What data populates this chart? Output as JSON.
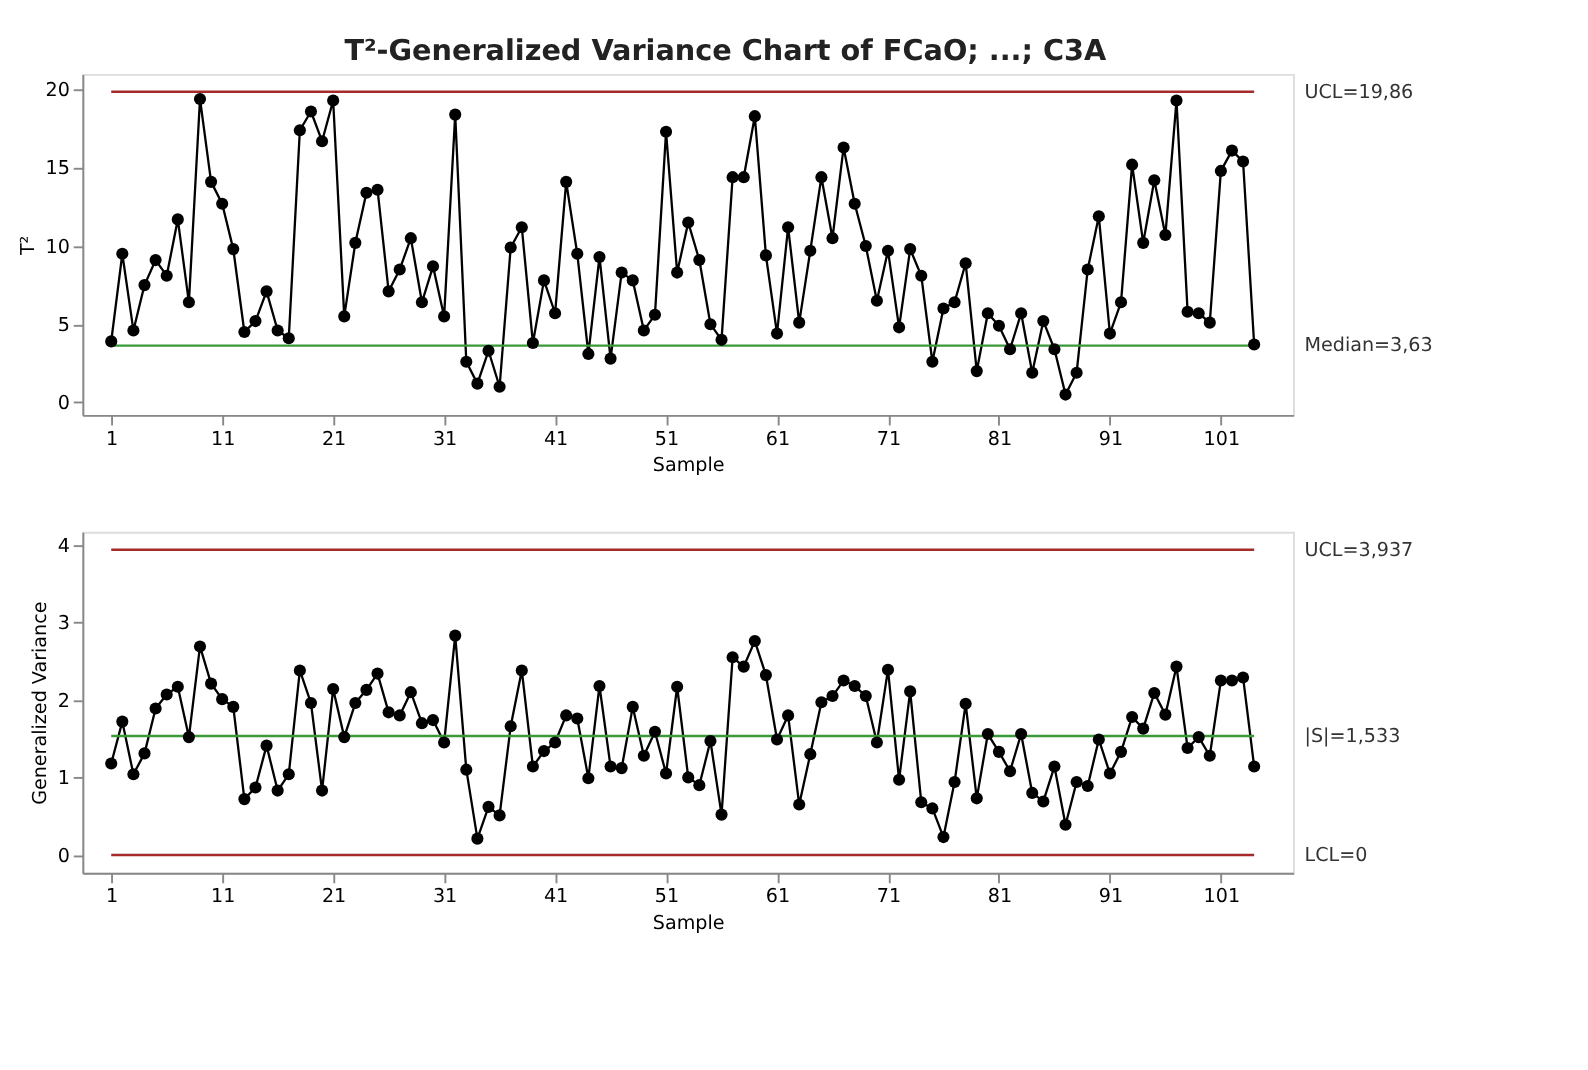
{
  "chart_data": [
    {
      "type": "line",
      "title": "T²-Generalized Variance Chart of FCaO; ...; C3A",
      "xlabel": "Sample",
      "ylabel": "T²",
      "x": [
        1,
        2,
        3,
        4,
        5,
        6,
        7,
        8,
        9,
        10,
        11,
        12,
        13,
        14,
        15,
        16,
        17,
        18,
        19,
        20,
        21,
        22,
        23,
        24,
        25,
        26,
        27,
        28,
        29,
        30,
        31,
        32,
        33,
        34,
        35,
        36,
        37,
        38,
        39,
        40,
        41,
        42,
        43,
        44,
        45,
        46,
        47,
        48,
        49,
        50,
        51,
        52,
        53,
        54,
        55,
        56,
        57,
        58,
        59,
        60,
        61,
        62,
        63,
        64,
        65,
        66,
        67,
        68,
        69,
        70,
        71,
        72,
        73,
        74,
        75,
        76,
        77,
        78,
        79,
        80,
        81,
        82,
        83,
        84,
        85,
        86,
        87,
        88,
        89,
        90,
        91,
        92,
        93,
        94,
        95,
        96,
        97,
        98,
        99,
        100,
        101,
        102,
        103,
        104
      ],
      "series": [
        {
          "color": "#000000",
          "values": [
            3.9,
            9.5,
            4.6,
            7.5,
            9.1,
            8.1,
            11.7,
            6.4,
            19.4,
            14.1,
            12.7,
            9.8,
            4.5,
            5.2,
            7.1,
            4.6,
            4.1,
            17.4,
            18.6,
            16.7,
            19.3,
            5.5,
            10.2,
            13.4,
            13.6,
            7.1,
            8.5,
            10.5,
            6.4,
            8.7,
            5.5,
            18.4,
            2.6,
            1.2,
            3.3,
            1.0,
            9.9,
            11.2,
            3.8,
            7.8,
            5.7,
            14.1,
            9.5,
            3.1,
            9.3,
            2.8,
            8.3,
            7.8,
            4.6,
            5.6,
            17.3,
            8.3,
            11.5,
            9.1,
            5.0,
            4.0,
            14.4,
            14.4,
            18.3,
            9.4,
            4.4,
            11.2,
            5.1,
            9.7,
            14.4,
            10.5,
            16.3,
            12.7,
            10.0,
            6.5,
            9.7,
            4.8,
            9.8,
            8.1,
            2.6,
            6.0,
            6.4,
            8.9,
            2.0,
            5.7,
            4.9,
            3.4,
            5.7,
            1.9,
            5.2,
            3.4,
            0.5,
            1.9,
            8.5,
            11.9,
            4.4,
            6.4,
            15.2,
            10.2,
            14.2,
            10.7,
            19.3,
            5.8,
            5.7,
            5.1,
            14.8,
            16.1,
            15.4,
            3.7
          ]
        }
      ],
      "ref_lines": [
        {
          "axis": "y",
          "value": 19.86,
          "label": "UCL=19,86",
          "color": "#a52a2a"
        },
        {
          "axis": "y",
          "value": 3.63,
          "label": "Median=3,63",
          "color": "#3a9a3a"
        }
      ],
      "xlim": [
        -1.6,
        107.5
      ],
      "xticks": [
        1,
        11,
        21,
        31,
        41,
        51,
        61,
        71,
        81,
        91,
        101
      ],
      "ylim": [
        -0.8,
        21
      ],
      "yticks": [
        0,
        5,
        10,
        15,
        20
      ],
      "marker": "circle",
      "line_style": "solid",
      "grid": false
    },
    {
      "type": "line",
      "xlabel": "Sample",
      "ylabel": "Generalized Variance",
      "x": [
        1,
        2,
        3,
        4,
        5,
        6,
        7,
        8,
        9,
        10,
        11,
        12,
        13,
        14,
        15,
        16,
        17,
        18,
        19,
        20,
        21,
        22,
        23,
        24,
        25,
        26,
        27,
        28,
        29,
        30,
        31,
        32,
        33,
        34,
        35,
        36,
        37,
        38,
        39,
        40,
        41,
        42,
        43,
        44,
        45,
        46,
        47,
        48,
        49,
        50,
        51,
        52,
        53,
        54,
        55,
        56,
        57,
        58,
        59,
        60,
        61,
        62,
        63,
        64,
        65,
        66,
        67,
        68,
        69,
        70,
        71,
        72,
        73,
        74,
        75,
        76,
        77,
        78,
        79,
        80,
        81,
        82,
        83,
        84,
        85,
        86,
        87,
        88,
        89,
        90,
        91,
        92,
        93,
        94,
        95,
        96,
        97,
        98,
        99,
        100,
        101,
        102,
        103,
        104
      ],
      "series": [
        {
          "color": "#000000",
          "values": [
            1.18,
            1.72,
            1.04,
            1.31,
            1.89,
            2.07,
            2.17,
            1.52,
            2.69,
            2.21,
            2.01,
            1.91,
            0.72,
            0.87,
            1.41,
            0.83,
            1.04,
            2.38,
            1.96,
            0.83,
            2.14,
            1.52,
            1.96,
            2.13,
            2.34,
            1.84,
            1.8,
            2.1,
            1.7,
            1.74,
            1.45,
            2.83,
            1.1,
            0.21,
            0.62,
            0.51,
            1.66,
            2.38,
            1.14,
            1.34,
            1.45,
            1.8,
            1.76,
            0.99,
            2.18,
            1.14,
            1.12,
            1.91,
            1.28,
            1.59,
            1.05,
            2.17,
            1.0,
            0.9,
            1.47,
            0.52,
            2.55,
            2.43,
            2.76,
            2.32,
            1.49,
            1.8,
            0.65,
            1.3,
            1.97,
            2.05,
            2.25,
            2.18,
            2.05,
            1.45,
            2.39,
            0.97,
            2.11,
            0.68,
            0.6,
            0.23,
            0.94,
            1.95,
            0.73,
            1.56,
            1.33,
            1.08,
            1.56,
            0.8,
            0.69,
            1.14,
            0.39,
            0.94,
            0.89,
            1.49,
            1.05,
            1.33,
            1.78,
            1.63,
            2.09,
            1.81,
            2.43,
            1.38,
            1.52,
            1.28,
            2.25,
            2.25,
            2.29,
            1.14
          ]
        }
      ],
      "ref_lines": [
        {
          "axis": "y",
          "value": 3.937,
          "label": "UCL=3,937",
          "color": "#a52a2a"
        },
        {
          "axis": "y",
          "value": 1.533,
          "label": "|S|=1,533",
          "color": "#3a9a3a"
        },
        {
          "axis": "y",
          "value": 0,
          "label": "LCL=0",
          "color": "#a52a2a"
        }
      ],
      "xlim": [
        -1.6,
        107.5
      ],
      "xticks": [
        1,
        11,
        21,
        31,
        41,
        51,
        61,
        71,
        81,
        91,
        101
      ],
      "ylim": [
        -0.23,
        4.17
      ],
      "yticks": [
        0,
        1,
        2,
        3,
        4
      ],
      "marker": "circle",
      "line_style": "solid",
      "grid": false
    }
  ]
}
